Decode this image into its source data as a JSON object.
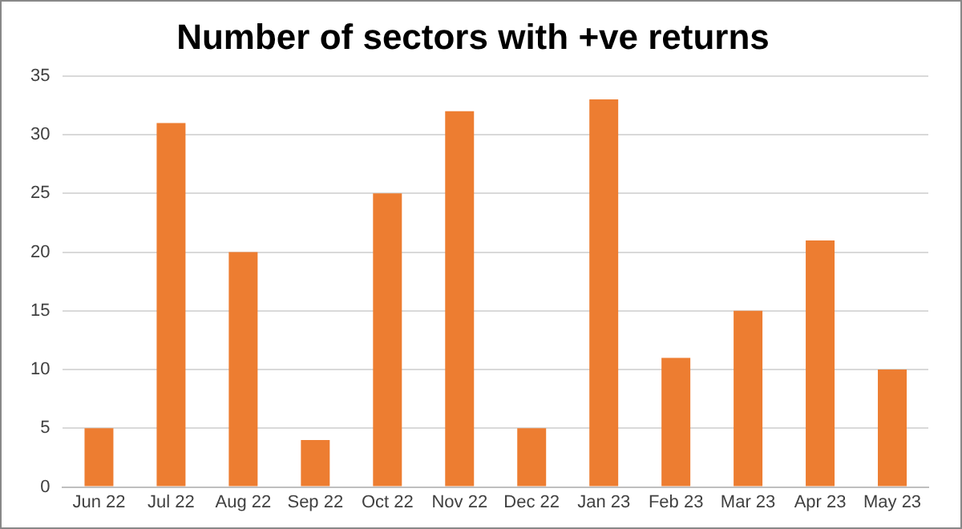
{
  "chart_data": {
    "type": "bar",
    "title": "Number of sectors with +ve returns",
    "categories": [
      "Jun 22",
      "Jul 22",
      "Aug 22",
      "Sep 22",
      "Oct 22",
      "Nov 22",
      "Dec 22",
      "Jan 23",
      "Feb 23",
      "Mar 23",
      "Apr 23",
      "May 23"
    ],
    "values": [
      5,
      31,
      20,
      4,
      25,
      32,
      5,
      33,
      11,
      15,
      21,
      10
    ],
    "color": "#ed7d31",
    "ylim": [
      0,
      35
    ],
    "yticks": [
      0,
      5,
      10,
      15,
      20,
      25,
      30,
      35
    ],
    "grid": "y"
  }
}
